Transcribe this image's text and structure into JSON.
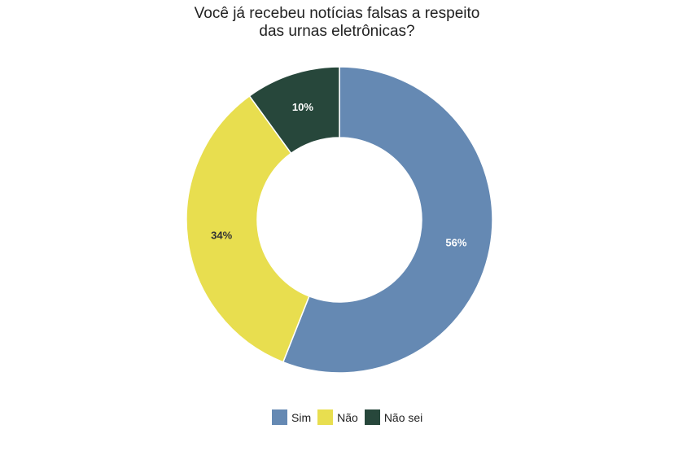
{
  "chart_data": {
    "type": "pie",
    "variant": "donut",
    "title_lines": [
      "Você já recebeu notícias falsas a respeito",
      "das urnas eletrônicas?"
    ],
    "categories": [
      "Sim",
      "Não",
      "Não sei"
    ],
    "values": [
      56,
      34,
      10
    ],
    "labels": [
      "56%",
      "34%",
      "10%"
    ],
    "colors": [
      "#6589b3",
      "#e8de4f",
      "#27473b"
    ],
    "label_colors": [
      "#ffffff",
      "#333333",
      "#ffffff"
    ],
    "legend_position": "bottom"
  }
}
